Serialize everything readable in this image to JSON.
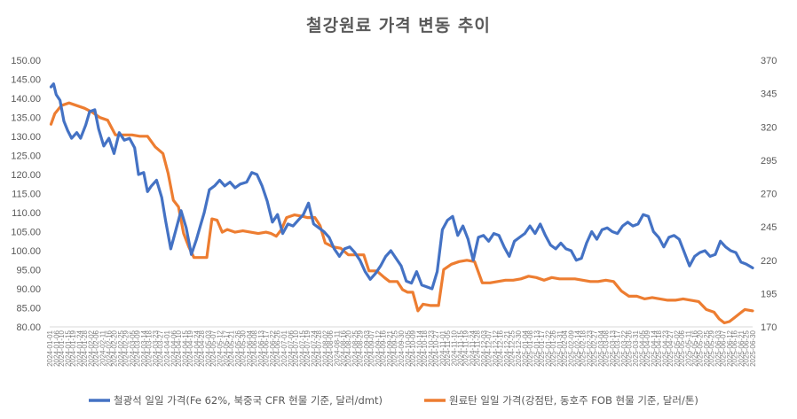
{
  "chart_data": {
    "type": "line",
    "title": "철강원료 가격 변동 추이",
    "x_range": [
      "2024-01-01",
      "2025-06-30"
    ],
    "x_tick_format": "YYYY-MM-DD",
    "left_axis": {
      "min": 80,
      "max": 150,
      "step": 5,
      "tick_labels": [
        "150.00",
        "145.00",
        "140.00",
        "135.00",
        "130.00",
        "125.00",
        "120.00",
        "115.00",
        "110.00",
        "105.00",
        "100.00",
        "95.00",
        "90.00",
        "85.00",
        "80.00"
      ]
    },
    "right_axis": {
      "min": 170,
      "max": 370,
      "step": 25,
      "tick_labels": [
        "370",
        "345",
        "320",
        "295",
        "270",
        "245",
        "220",
        "195",
        "170"
      ]
    },
    "grid": false,
    "legend_position": "bottom",
    "series": [
      {
        "name": "철광석 일일 가격(Fe 62%, 북중국 CFR 현물 기준, 달러/dmt)",
        "axis": "left",
        "color": "#4472C4",
        "points": [
          [
            "2024-01-02",
            143.0
          ],
          [
            "2024-01-04",
            143.8
          ],
          [
            "2024-01-06",
            141.0
          ],
          [
            "2024-01-09",
            139.5
          ],
          [
            "2024-01-12",
            134.0
          ],
          [
            "2024-01-15",
            131.5
          ],
          [
            "2024-01-18",
            129.5
          ],
          [
            "2024-01-22",
            131.0
          ],
          [
            "2024-01-25",
            129.5
          ],
          [
            "2024-01-29",
            133.0
          ],
          [
            "2024-02-01",
            136.5
          ],
          [
            "2024-02-05",
            137.0
          ],
          [
            "2024-02-08",
            132.0
          ],
          [
            "2024-02-12",
            127.5
          ],
          [
            "2024-02-16",
            129.5
          ],
          [
            "2024-02-20",
            125.5
          ],
          [
            "2024-02-24",
            131.0
          ],
          [
            "2024-02-28",
            129.0
          ],
          [
            "2024-03-03",
            129.5
          ],
          [
            "2024-03-07",
            127.0
          ],
          [
            "2024-03-10",
            120.0
          ],
          [
            "2024-03-14",
            120.5
          ],
          [
            "2024-03-17",
            115.5
          ],
          [
            "2024-03-20",
            117.0
          ],
          [
            "2024-03-24",
            118.5
          ],
          [
            "2024-03-28",
            114.0
          ],
          [
            "2024-03-31",
            108.0
          ],
          [
            "2024-04-04",
            100.5
          ],
          [
            "2024-04-08",
            105.5
          ],
          [
            "2024-04-12",
            110.5
          ],
          [
            "2024-04-16",
            106.0
          ],
          [
            "2024-04-20",
            99.0
          ],
          [
            "2024-04-24",
            103.0
          ],
          [
            "2024-04-27",
            106.5
          ],
          [
            "2024-04-30",
            110.0
          ],
          [
            "2024-05-04",
            116.0
          ],
          [
            "2024-05-08",
            117.0
          ],
          [
            "2024-05-12",
            118.5
          ],
          [
            "2024-05-16",
            117.0
          ],
          [
            "2024-05-20",
            118.0
          ],
          [
            "2024-05-24",
            116.5
          ],
          [
            "2024-05-28",
            117.5
          ],
          [
            "2024-06-02",
            118.0
          ],
          [
            "2024-06-06",
            120.5
          ],
          [
            "2024-06-10",
            120.0
          ],
          [
            "2024-06-14",
            117.0
          ],
          [
            "2024-06-18",
            113.0
          ],
          [
            "2024-06-22",
            107.5
          ],
          [
            "2024-06-26",
            109.5
          ],
          [
            "2024-06-30",
            104.5
          ],
          [
            "2024-07-04",
            107.0
          ],
          [
            "2024-07-08",
            106.5
          ],
          [
            "2024-07-12",
            108.0
          ],
          [
            "2024-07-16",
            109.5
          ],
          [
            "2024-07-20",
            112.5
          ],
          [
            "2024-07-24",
            107.0
          ],
          [
            "2024-07-28",
            106.0
          ],
          [
            "2024-08-01",
            105.0
          ],
          [
            "2024-08-05",
            103.5
          ],
          [
            "2024-08-09",
            100.5
          ],
          [
            "2024-08-13",
            98.5
          ],
          [
            "2024-08-17",
            100.5
          ],
          [
            "2024-08-21",
            101.0
          ],
          [
            "2024-08-25",
            99.5
          ],
          [
            "2024-08-29",
            97.5
          ],
          [
            "2024-09-02",
            94.5
          ],
          [
            "2024-09-06",
            92.5
          ],
          [
            "2024-09-10",
            94.0
          ],
          [
            "2024-09-14",
            96.0
          ],
          [
            "2024-09-18",
            98.5
          ],
          [
            "2024-09-22",
            100.0
          ],
          [
            "2024-09-26",
            98.0
          ],
          [
            "2024-09-30",
            96.0
          ],
          [
            "2024-10-04",
            92.0
          ],
          [
            "2024-10-08",
            91.5
          ],
          [
            "2024-10-12",
            94.5
          ],
          [
            "2024-10-16",
            91.0
          ],
          [
            "2024-10-20",
            90.5
          ],
          [
            "2024-10-24",
            90.0
          ],
          [
            "2024-10-28",
            94.5
          ],
          [
            "2024-11-01",
            105.5
          ],
          [
            "2024-11-05",
            108.0
          ],
          [
            "2024-11-09",
            109.0
          ],
          [
            "2024-11-13",
            104.0
          ],
          [
            "2024-11-17",
            106.5
          ],
          [
            "2024-11-21",
            103.0
          ],
          [
            "2024-11-25",
            97.5
          ],
          [
            "2024-11-29",
            103.5
          ],
          [
            "2024-12-03",
            104.0
          ],
          [
            "2024-12-07",
            102.5
          ],
          [
            "2024-12-11",
            104.5
          ],
          [
            "2024-12-15",
            104.0
          ],
          [
            "2024-12-19",
            101.0
          ],
          [
            "2024-12-23",
            98.5
          ],
          [
            "2024-12-27",
            102.5
          ],
          [
            "2024-12-31",
            103.5
          ],
          [
            "2025-01-04",
            104.5
          ],
          [
            "2025-01-08",
            106.5
          ],
          [
            "2025-01-12",
            104.5
          ],
          [
            "2025-01-16",
            107.0
          ],
          [
            "2025-01-20",
            104.0
          ],
          [
            "2025-01-24",
            101.5
          ],
          [
            "2025-01-28",
            100.5
          ],
          [
            "2025-02-01",
            102.0
          ],
          [
            "2025-02-05",
            100.5
          ],
          [
            "2025-02-09",
            100.0
          ],
          [
            "2025-02-13",
            97.5
          ],
          [
            "2025-02-17",
            98.0
          ],
          [
            "2025-02-21",
            102.0
          ],
          [
            "2025-02-25",
            105.0
          ],
          [
            "2025-03-01",
            103.0
          ],
          [
            "2025-03-05",
            105.5
          ],
          [
            "2025-03-09",
            106.0
          ],
          [
            "2025-03-13",
            105.0
          ],
          [
            "2025-03-17",
            104.5
          ],
          [
            "2025-03-21",
            106.5
          ],
          [
            "2025-03-25",
            107.5
          ],
          [
            "2025-03-29",
            106.5
          ],
          [
            "2025-04-02",
            107.0
          ],
          [
            "2025-04-06",
            109.5
          ],
          [
            "2025-04-10",
            109.0
          ],
          [
            "2025-04-14",
            105.0
          ],
          [
            "2025-04-18",
            103.5
          ],
          [
            "2025-04-22",
            101.0
          ],
          [
            "2025-04-26",
            103.5
          ],
          [
            "2025-04-30",
            104.0
          ],
          [
            "2025-05-04",
            103.0
          ],
          [
            "2025-05-08",
            99.5
          ],
          [
            "2025-05-12",
            96.0
          ],
          [
            "2025-05-16",
            98.5
          ],
          [
            "2025-05-20",
            99.5
          ],
          [
            "2025-05-24",
            100.0
          ],
          [
            "2025-05-28",
            98.5
          ],
          [
            "2025-06-01",
            99.0
          ],
          [
            "2025-06-05",
            102.5
          ],
          [
            "2025-06-09",
            101.0
          ],
          [
            "2025-06-13",
            100.0
          ],
          [
            "2025-06-17",
            99.5
          ],
          [
            "2025-06-21",
            97.0
          ],
          [
            "2025-06-25",
            96.5
          ],
          [
            "2025-06-30",
            95.5
          ]
        ]
      },
      {
        "name": "원료탄 일일 가격(강점탄, 동호주 FOB 현물 기준, 달러/톤)",
        "axis": "right",
        "color": "#ED7D31",
        "points": [
          [
            "2024-01-02",
            322
          ],
          [
            "2024-01-05",
            330
          ],
          [
            "2024-01-10",
            336
          ],
          [
            "2024-01-16",
            338
          ],
          [
            "2024-01-22",
            336
          ],
          [
            "2024-01-28",
            334
          ],
          [
            "2024-02-03",
            331
          ],
          [
            "2024-02-09",
            327
          ],
          [
            "2024-02-15",
            325
          ],
          [
            "2024-02-21",
            314
          ],
          [
            "2024-02-27",
            314
          ],
          [
            "2024-03-05",
            314
          ],
          [
            "2024-03-11",
            313
          ],
          [
            "2024-03-17",
            313
          ],
          [
            "2024-03-23",
            305
          ],
          [
            "2024-03-29",
            300
          ],
          [
            "2024-04-02",
            285
          ],
          [
            "2024-04-06",
            265
          ],
          [
            "2024-04-10",
            260
          ],
          [
            "2024-04-14",
            240
          ],
          [
            "2024-04-18",
            230
          ],
          [
            "2024-04-22",
            222
          ],
          [
            "2024-04-28",
            222
          ],
          [
            "2024-05-02",
            222
          ],
          [
            "2024-05-06",
            251
          ],
          [
            "2024-05-10",
            250
          ],
          [
            "2024-05-14",
            241
          ],
          [
            "2024-05-18",
            243
          ],
          [
            "2024-05-24",
            241
          ],
          [
            "2024-05-30",
            242
          ],
          [
            "2024-06-05",
            241
          ],
          [
            "2024-06-11",
            240
          ],
          [
            "2024-06-17",
            241
          ],
          [
            "2024-06-21",
            240
          ],
          [
            "2024-06-25",
            238
          ],
          [
            "2024-06-29",
            243
          ],
          [
            "2024-07-03",
            252
          ],
          [
            "2024-07-09",
            254
          ],
          [
            "2024-07-15",
            253
          ],
          [
            "2024-07-19",
            252
          ],
          [
            "2024-07-25",
            252
          ],
          [
            "2024-07-29",
            246
          ],
          [
            "2024-08-02",
            233
          ],
          [
            "2024-08-08",
            230
          ],
          [
            "2024-08-14",
            229
          ],
          [
            "2024-08-20",
            224
          ],
          [
            "2024-08-26",
            224
          ],
          [
            "2024-09-01",
            224
          ],
          [
            "2024-09-05",
            212
          ],
          [
            "2024-09-11",
            212
          ],
          [
            "2024-09-17",
            207
          ],
          [
            "2024-09-21",
            204
          ],
          [
            "2024-09-27",
            204
          ],
          [
            "2024-10-01",
            198
          ],
          [
            "2024-10-05",
            196
          ],
          [
            "2024-10-09",
            196
          ],
          [
            "2024-10-13",
            182
          ],
          [
            "2024-10-17",
            187
          ],
          [
            "2024-10-23",
            186
          ],
          [
            "2024-10-29",
            186
          ],
          [
            "2024-11-02",
            213
          ],
          [
            "2024-11-08",
            217
          ],
          [
            "2024-11-14",
            219
          ],
          [
            "2024-11-20",
            220
          ],
          [
            "2024-11-26",
            219
          ],
          [
            "2024-12-02",
            203
          ],
          [
            "2024-12-08",
            203
          ],
          [
            "2024-12-14",
            204
          ],
          [
            "2024-12-20",
            205
          ],
          [
            "2024-12-26",
            205
          ],
          [
            "2025-01-01",
            206
          ],
          [
            "2025-01-07",
            208
          ],
          [
            "2025-01-13",
            207
          ],
          [
            "2025-01-19",
            205
          ],
          [
            "2025-01-25",
            207
          ],
          [
            "2025-01-31",
            206
          ],
          [
            "2025-02-06",
            206
          ],
          [
            "2025-02-12",
            206
          ],
          [
            "2025-02-18",
            205
          ],
          [
            "2025-02-24",
            204
          ],
          [
            "2025-03-02",
            204
          ],
          [
            "2025-03-08",
            205
          ],
          [
            "2025-03-14",
            204
          ],
          [
            "2025-03-20",
            197
          ],
          [
            "2025-03-26",
            193
          ],
          [
            "2025-04-01",
            193
          ],
          [
            "2025-04-07",
            191
          ],
          [
            "2025-04-13",
            192
          ],
          [
            "2025-04-19",
            191
          ],
          [
            "2025-04-25",
            190
          ],
          [
            "2025-05-01",
            190
          ],
          [
            "2025-05-07",
            191
          ],
          [
            "2025-05-13",
            190
          ],
          [
            "2025-05-19",
            189
          ],
          [
            "2025-05-25",
            183
          ],
          [
            "2025-05-31",
            181
          ],
          [
            "2025-06-04",
            176
          ],
          [
            "2025-06-08",
            173
          ],
          [
            "2025-06-12",
            174
          ],
          [
            "2025-06-16",
            177
          ],
          [
            "2025-06-20",
            180
          ],
          [
            "2025-06-24",
            183
          ],
          [
            "2025-06-30",
            182
          ]
        ]
      }
    ]
  }
}
